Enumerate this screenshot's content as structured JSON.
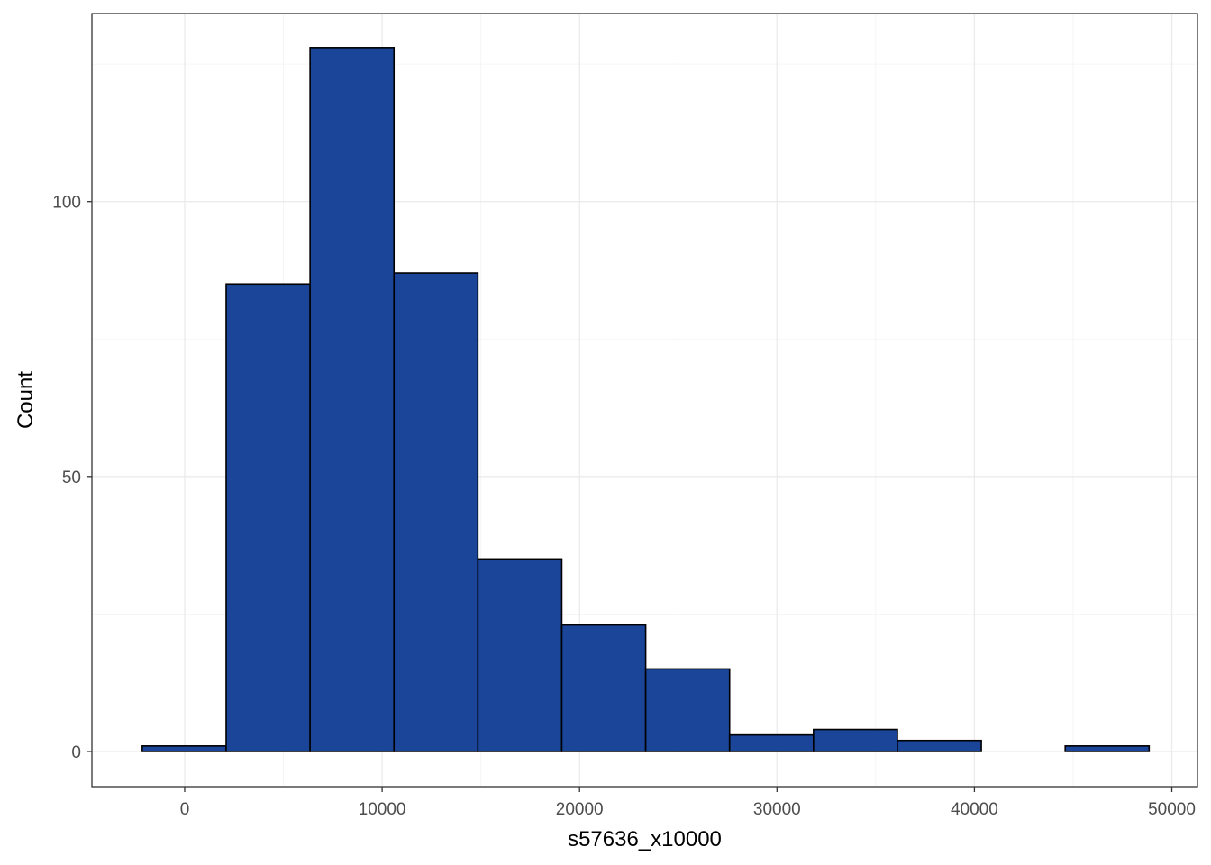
{
  "chart_data": {
    "type": "bar",
    "subtype": "histogram",
    "xlabel": "s57636_x10000",
    "ylabel": "Count",
    "xlim": [
      -4700,
      51300
    ],
    "ylim": [
      -6.4,
      134.2
    ],
    "x_ticks": [
      0,
      10000,
      20000,
      30000,
      40000,
      50000
    ],
    "y_ticks": [
      0,
      50,
      100
    ],
    "grid": true,
    "bar_fill": "#1a4599",
    "bar_stroke": "#000000",
    "bins": [
      {
        "x0": -2150,
        "x1": 2100,
        "count": 1
      },
      {
        "x0": 2100,
        "x1": 6350,
        "count": 85
      },
      {
        "x0": 6350,
        "x1": 10600,
        "count": 128
      },
      {
        "x0": 10600,
        "x1": 14850,
        "count": 87
      },
      {
        "x0": 14850,
        "x1": 19100,
        "count": 35
      },
      {
        "x0": 19100,
        "x1": 23350,
        "count": 23
      },
      {
        "x0": 23350,
        "x1": 27600,
        "count": 15
      },
      {
        "x0": 27600,
        "x1": 31850,
        "count": 3
      },
      {
        "x0": 31850,
        "x1": 36100,
        "count": 4
      },
      {
        "x0": 36100,
        "x1": 40350,
        "count": 2
      },
      {
        "x0": 40350,
        "x1": 44600,
        "count": 0
      },
      {
        "x0": 44600,
        "x1": 48850,
        "count": 1
      }
    ]
  }
}
